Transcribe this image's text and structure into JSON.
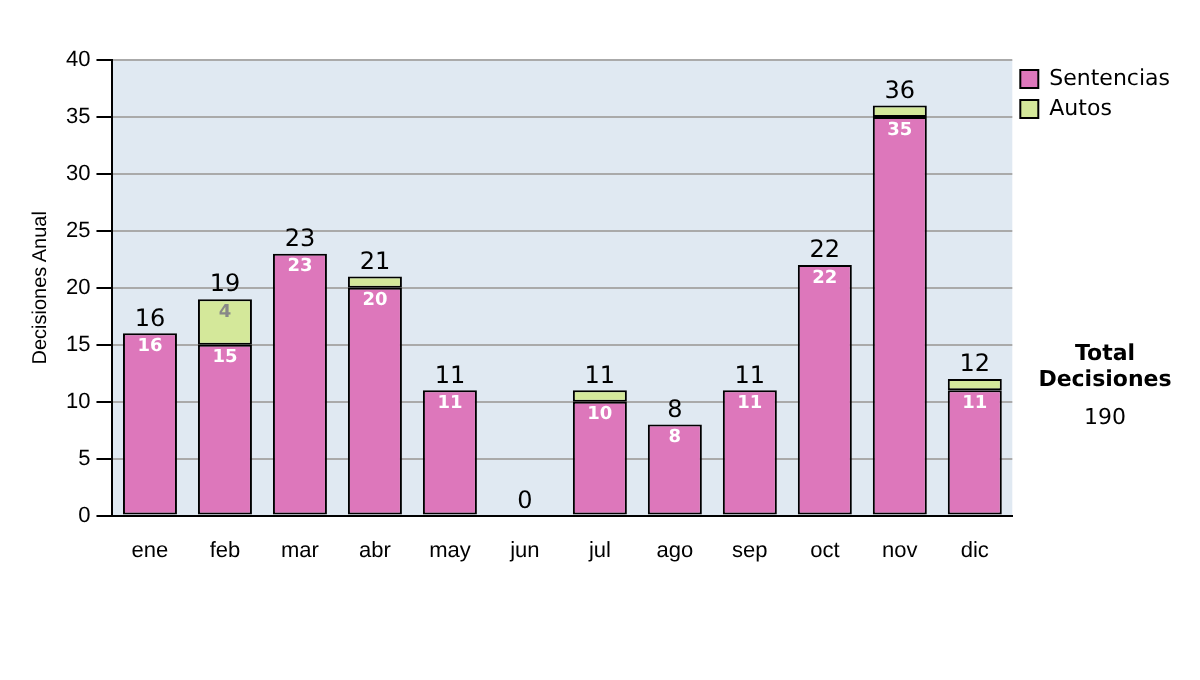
{
  "chart_data": {
    "type": "bar",
    "stacked": true,
    "ylabel": "Decisiones Anual",
    "categories": [
      "ene",
      "feb",
      "mar",
      "abr",
      "may",
      "jun",
      "jul",
      "ago",
      "sep",
      "oct",
      "nov",
      "dic"
    ],
    "series": [
      {
        "name": "Sentencias",
        "color": "#dd77bb",
        "values": [
          16,
          15,
          23,
          20,
          11,
          0,
          10,
          8,
          11,
          22,
          35,
          11
        ],
        "value_labels": [
          "16",
          "15",
          "23",
          "20",
          "11",
          null,
          "10",
          "8",
          "11",
          "22",
          "35",
          "11"
        ]
      },
      {
        "name": "Autos",
        "color": "#d4e89a",
        "values": [
          0,
          4,
          0,
          1,
          0,
          0,
          1,
          0,
          0,
          0,
          1,
          1
        ],
        "value_labels": [
          null,
          "4",
          null,
          null,
          null,
          null,
          null,
          null,
          null,
          null,
          null,
          null
        ]
      }
    ],
    "totals": [
      "16",
      "19",
      "23",
      "21",
      "11",
      "0",
      "11",
      "8",
      "11",
      "22",
      "36",
      "12"
    ],
    "ylim": [
      0,
      40
    ],
    "yticks": [
      0,
      5,
      10,
      15,
      20,
      25,
      30,
      35,
      40
    ],
    "grid": "y",
    "legend": "right",
    "annotations": [
      "Total Decisiones",
      "190"
    ]
  }
}
